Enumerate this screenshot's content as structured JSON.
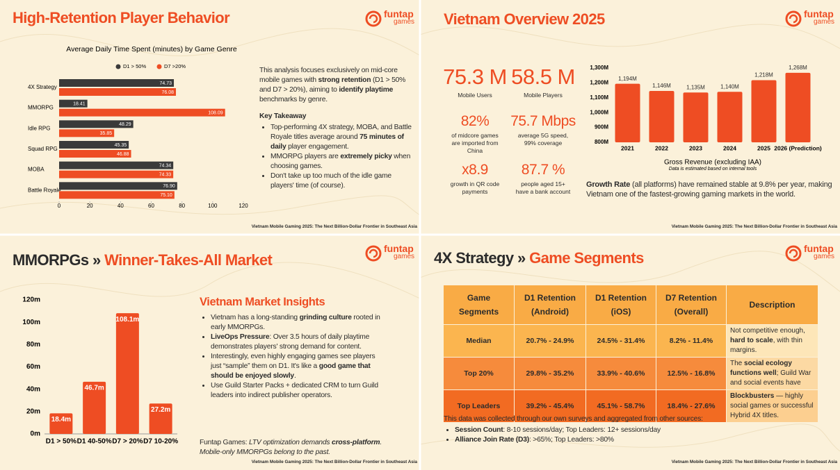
{
  "logo": {
    "name": "funtap",
    "sub": "games"
  },
  "footer": "Vietnam Mobile Gaming 2025: The Next Billion-Dollar Frontier in Southeast Asia",
  "panels": [
    {
      "title": [
        {
          "text": "High-Retention Player Behavior",
          "color": "#ee4d23"
        }
      ],
      "intro": [
        {
          "text": "This analysis focuses exclusively on mid-core mobile games with "
        },
        {
          "text": "strong retention",
          "bold": true
        },
        {
          "text": " (D1 > 50% and D7 > 20%), aiming to "
        },
        {
          "text": "identify playtime",
          "bold": true
        },
        {
          "text": " benchmarks by genre."
        }
      ],
      "heading": "Key Takeaway",
      "bullets": [
        [
          {
            "text": "Top-performing 4X strategy, MOBA, and Battle Royale titles average around "
          },
          {
            "text": "75 minutes of daily",
            "bold": true
          },
          {
            "text": " player engagement."
          }
        ],
        [
          {
            "text": "MMORPG players are "
          },
          {
            "text": "extremely picky",
            "bold": true
          },
          {
            "text": " when choosing games."
          }
        ],
        [
          {
            "text": "Don't take up too much of the idle game players' time (of course)."
          }
        ]
      ]
    },
    {
      "title": [
        {
          "text": "Vietnam Overview 2025",
          "color": "#ee4d23"
        }
      ],
      "stats": [
        {
          "value": "75.3 M",
          "label": "Mobile Users"
        },
        {
          "value": "58.5 M",
          "label": "Mobile Players"
        },
        {
          "value": "82%",
          "label": "of midcore games are imported from China"
        },
        {
          "value": "75.7 Mbps",
          "label": "average 5G speed, 99% coverage"
        },
        {
          "value": "x8.9",
          "label": "growth in QR code payments"
        },
        {
          "value": "87.7 %",
          "label": "people aged 15+ have a bank account"
        }
      ],
      "note": [
        {
          "text": "Growth Rate",
          "bold": true
        },
        {
          "text": " (all platforms) have remained stable at 9.8% per year, making Vietnam one of the fastest-growing gaming markets in the world."
        }
      ]
    },
    {
      "title": [
        {
          "text": "MMORPGs » ",
          "color": "#2b2b2b"
        },
        {
          "text": "Winner-Takes-All Market",
          "color": "#ee4d23"
        }
      ],
      "heading": "Vietnam Market Insights",
      "bullets": [
        [
          {
            "text": "Vietnam has a long-standing "
          },
          {
            "text": "grinding culture",
            "bold": true
          },
          {
            "text": " rooted in early MMORPGs."
          }
        ],
        [
          {
            "text": "LiveOps Pressure",
            "bold": true
          },
          {
            "text": ": Over 3.5 hours of daily playtime demonstrates players' strong demand for content."
          }
        ],
        [
          {
            "text": "Interestingly, even highly engaging games see players just “sample” them on D1. It's like a "
          },
          {
            "text": "good game that should be enjoyed slowly",
            "bold": true
          },
          {
            "text": "."
          }
        ],
        [
          {
            "text": "Use Guild Starter Packs + dedicated CRM to turn Guild leaders into indirect publisher operators."
          }
        ]
      ],
      "closing": [
        {
          "text": "Funtap Games: "
        },
        {
          "text": "LTV optimization demands ",
          "italic": true
        },
        {
          "text": "cross-platform",
          "italic": true,
          "bold": true
        },
        {
          "text": ". Mobile-only MMORPGs belong to the past.",
          "italic": true
        }
      ]
    },
    {
      "title": [
        {
          "text": "4X Strategy » ",
          "color": "#2b2b2b"
        },
        {
          "text": "Game Segments",
          "color": "#ee4d23"
        }
      ],
      "table": {
        "header": [
          "Game Segments",
          "D1 Retention (Android)",
          "D1 Retention (iOS)",
          "D7 Retention (Overall)",
          "Description"
        ],
        "rows": [
          [
            "Median",
            "20.7% - 24.9%",
            "24.5% - 31.4%",
            "8.2% - 11.4%",
            [
              {
                "text": "Not competitive enough, "
              },
              {
                "text": "hard to scale",
                "bold": true
              },
              {
                "text": ", with thin margins."
              }
            ]
          ],
          [
            "Top 20%",
            "29.8% - 35.2%",
            "33.9% - 40.6%",
            "12.5% - 16.8%",
            [
              {
                "text": "The "
              },
              {
                "text": "social ecology functions well",
                "bold": true
              },
              {
                "text": "; Guild War and social events have"
              }
            ]
          ],
          [
            "Top Leaders",
            "39.2% - 45.4%",
            "45.1% - 58.7%",
            "18.4% - 27.6%",
            [
              {
                "text": "Blockbusters",
                "bold": true
              },
              {
                "text": " — highly social games or successful Hybrid 4X titles."
              }
            ]
          ]
        ]
      },
      "note": "This data was collected through our own surveys and aggregated from other sources:",
      "bullets": [
        [
          {
            "text": "Session Count",
            "bold": true
          },
          {
            "text": ": 8-10 sessions/day; Top Leaders: 12+ sessions/day"
          }
        ],
        [
          {
            "text": "Alliance Join Rate (D3)",
            "bold": true
          },
          {
            "text": ": >65%; Top Leaders: >80%"
          }
        ]
      ]
    }
  ],
  "chart_data": [
    {
      "type": "bar",
      "orientation": "horizontal",
      "title": "Average Daily Time Spent (minutes) by Game Genre",
      "categories": [
        "4X Strategy",
        "MMORPG",
        "Idle RPG",
        "Squad RPG",
        "MOBA",
        "Battle Royale"
      ],
      "series": [
        {
          "name": "D1 > 50%",
          "color": "#3a3a3a",
          "values": [
            74.73,
            18.41,
            48.29,
            45.35,
            74.34,
            76.9
          ],
          "value_labels": [
            "74.73",
            "18.41",
            "48.29",
            "45.35",
            "74.34",
            "76.90"
          ]
        },
        {
          "name": "D7 >20%",
          "color": "#ee4d23",
          "values": [
            76.08,
            108.09,
            35.85,
            46.88,
            74.33,
            75.1
          ],
          "value_labels": [
            "76.08",
            "108.09",
            "35.85",
            "46.88",
            "74.33",
            "75.10"
          ]
        }
      ],
      "xlim": [
        0,
        120
      ],
      "xticks": [
        0,
        20,
        40,
        60,
        80,
        100,
        120
      ]
    },
    {
      "type": "bar",
      "orientation": "vertical",
      "categories": [
        "2021",
        "2022",
        "2023",
        "2024",
        "2025",
        "2026 (Prediction)"
      ],
      "values": [
        1194,
        1146,
        1135,
        1140,
        1218,
        1268
      ],
      "value_labels": [
        "1,194M",
        "1,146M",
        "1,135M",
        "1,140M",
        "1,218M",
        "1,268M"
      ],
      "color": "#ee4d23",
      "xlabel": "Gross Revenue (excluding IAA)",
      "annotation": "Data is estimated based on internal tools",
      "ylim": [
        800,
        1300
      ],
      "yticks": [
        {
          "value": 800,
          "label": "800M"
        },
        {
          "value": 900,
          "label": "900M"
        },
        {
          "value": 1000,
          "label": "1,000M"
        },
        {
          "value": 1100,
          "label": "1,100M"
        },
        {
          "value": 1200,
          "label": "1,200M"
        },
        {
          "value": 1300,
          "label": "1,300M"
        }
      ]
    },
    {
      "type": "bar",
      "orientation": "vertical",
      "categories": [
        "D1 > 50%",
        "D1 40-50%",
        "D7 > 20%",
        "D7 10-20%"
      ],
      "values": [
        18.4,
        46.7,
        108.1,
        27.2
      ],
      "value_labels": [
        "18.4m",
        "46.7m",
        "108.1m",
        "27.2m"
      ],
      "color": "#ee4d23",
      "ylim": [
        0,
        120
      ],
      "yticks": [
        {
          "value": 0,
          "label": "0m"
        },
        {
          "value": 20,
          "label": "20m"
        },
        {
          "value": 40,
          "label": "40m"
        },
        {
          "value": 60,
          "label": "60m"
        },
        {
          "value": 80,
          "label": "80m"
        },
        {
          "value": 100,
          "label": "100m"
        },
        {
          "value": 120,
          "label": "120m"
        }
      ]
    }
  ]
}
